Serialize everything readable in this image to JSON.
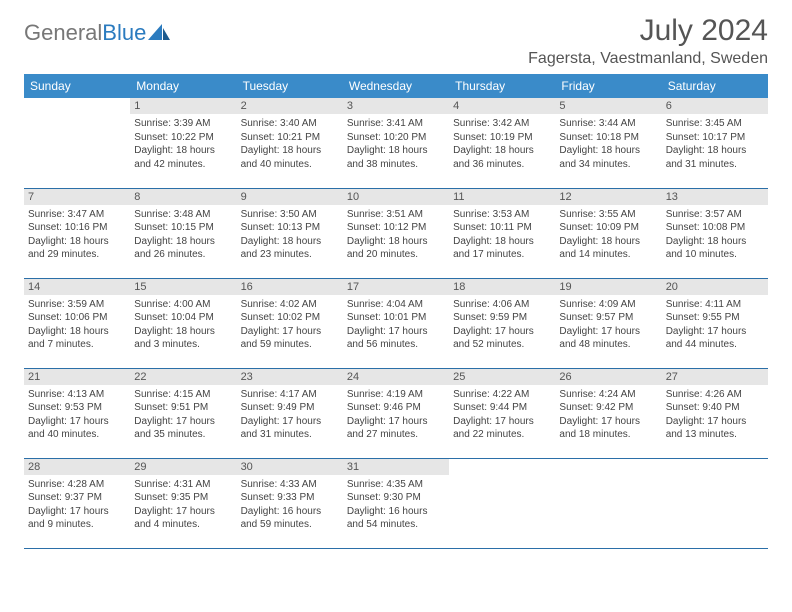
{
  "brand": {
    "part1": "General",
    "part2": "Blue"
  },
  "title": "July 2024",
  "location": "Fagersta, Vaestmanland, Sweden",
  "colors": {
    "header_bg": "#3a8bc9",
    "header_text": "#ffffff",
    "daynum_bg": "#e6e6e6",
    "border": "#2b6fa8",
    "brand_gray": "#777777",
    "brand_blue": "#2b7bbf"
  },
  "weekdays": [
    "Sunday",
    "Monday",
    "Tuesday",
    "Wednesday",
    "Thursday",
    "Friday",
    "Saturday"
  ],
  "weeks": [
    [
      null,
      {
        "n": "1",
        "sr": "3:39 AM",
        "ss": "10:22 PM",
        "dl": "18 hours and 42 minutes."
      },
      {
        "n": "2",
        "sr": "3:40 AM",
        "ss": "10:21 PM",
        "dl": "18 hours and 40 minutes."
      },
      {
        "n": "3",
        "sr": "3:41 AM",
        "ss": "10:20 PM",
        "dl": "18 hours and 38 minutes."
      },
      {
        "n": "4",
        "sr": "3:42 AM",
        "ss": "10:19 PM",
        "dl": "18 hours and 36 minutes."
      },
      {
        "n": "5",
        "sr": "3:44 AM",
        "ss": "10:18 PM",
        "dl": "18 hours and 34 minutes."
      },
      {
        "n": "6",
        "sr": "3:45 AM",
        "ss": "10:17 PM",
        "dl": "18 hours and 31 minutes."
      }
    ],
    [
      {
        "n": "7",
        "sr": "3:47 AM",
        "ss": "10:16 PM",
        "dl": "18 hours and 29 minutes."
      },
      {
        "n": "8",
        "sr": "3:48 AM",
        "ss": "10:15 PM",
        "dl": "18 hours and 26 minutes."
      },
      {
        "n": "9",
        "sr": "3:50 AM",
        "ss": "10:13 PM",
        "dl": "18 hours and 23 minutes."
      },
      {
        "n": "10",
        "sr": "3:51 AM",
        "ss": "10:12 PM",
        "dl": "18 hours and 20 minutes."
      },
      {
        "n": "11",
        "sr": "3:53 AM",
        "ss": "10:11 PM",
        "dl": "18 hours and 17 minutes."
      },
      {
        "n": "12",
        "sr": "3:55 AM",
        "ss": "10:09 PM",
        "dl": "18 hours and 14 minutes."
      },
      {
        "n": "13",
        "sr": "3:57 AM",
        "ss": "10:08 PM",
        "dl": "18 hours and 10 minutes."
      }
    ],
    [
      {
        "n": "14",
        "sr": "3:59 AM",
        "ss": "10:06 PM",
        "dl": "18 hours and 7 minutes."
      },
      {
        "n": "15",
        "sr": "4:00 AM",
        "ss": "10:04 PM",
        "dl": "18 hours and 3 minutes."
      },
      {
        "n": "16",
        "sr": "4:02 AM",
        "ss": "10:02 PM",
        "dl": "17 hours and 59 minutes."
      },
      {
        "n": "17",
        "sr": "4:04 AM",
        "ss": "10:01 PM",
        "dl": "17 hours and 56 minutes."
      },
      {
        "n": "18",
        "sr": "4:06 AM",
        "ss": "9:59 PM",
        "dl": "17 hours and 52 minutes."
      },
      {
        "n": "19",
        "sr": "4:09 AM",
        "ss": "9:57 PM",
        "dl": "17 hours and 48 minutes."
      },
      {
        "n": "20",
        "sr": "4:11 AM",
        "ss": "9:55 PM",
        "dl": "17 hours and 44 minutes."
      }
    ],
    [
      {
        "n": "21",
        "sr": "4:13 AM",
        "ss": "9:53 PM",
        "dl": "17 hours and 40 minutes."
      },
      {
        "n": "22",
        "sr": "4:15 AM",
        "ss": "9:51 PM",
        "dl": "17 hours and 35 minutes."
      },
      {
        "n": "23",
        "sr": "4:17 AM",
        "ss": "9:49 PM",
        "dl": "17 hours and 31 minutes."
      },
      {
        "n": "24",
        "sr": "4:19 AM",
        "ss": "9:46 PM",
        "dl": "17 hours and 27 minutes."
      },
      {
        "n": "25",
        "sr": "4:22 AM",
        "ss": "9:44 PM",
        "dl": "17 hours and 22 minutes."
      },
      {
        "n": "26",
        "sr": "4:24 AM",
        "ss": "9:42 PM",
        "dl": "17 hours and 18 minutes."
      },
      {
        "n": "27",
        "sr": "4:26 AM",
        "ss": "9:40 PM",
        "dl": "17 hours and 13 minutes."
      }
    ],
    [
      {
        "n": "28",
        "sr": "4:28 AM",
        "ss": "9:37 PM",
        "dl": "17 hours and 9 minutes."
      },
      {
        "n": "29",
        "sr": "4:31 AM",
        "ss": "9:35 PM",
        "dl": "17 hours and 4 minutes."
      },
      {
        "n": "30",
        "sr": "4:33 AM",
        "ss": "9:33 PM",
        "dl": "16 hours and 59 minutes."
      },
      {
        "n": "31",
        "sr": "4:35 AM",
        "ss": "9:30 PM",
        "dl": "16 hours and 54 minutes."
      },
      null,
      null,
      null
    ]
  ],
  "labels": {
    "sunrise": "Sunrise:",
    "sunset": "Sunset:",
    "daylight": "Daylight:"
  }
}
